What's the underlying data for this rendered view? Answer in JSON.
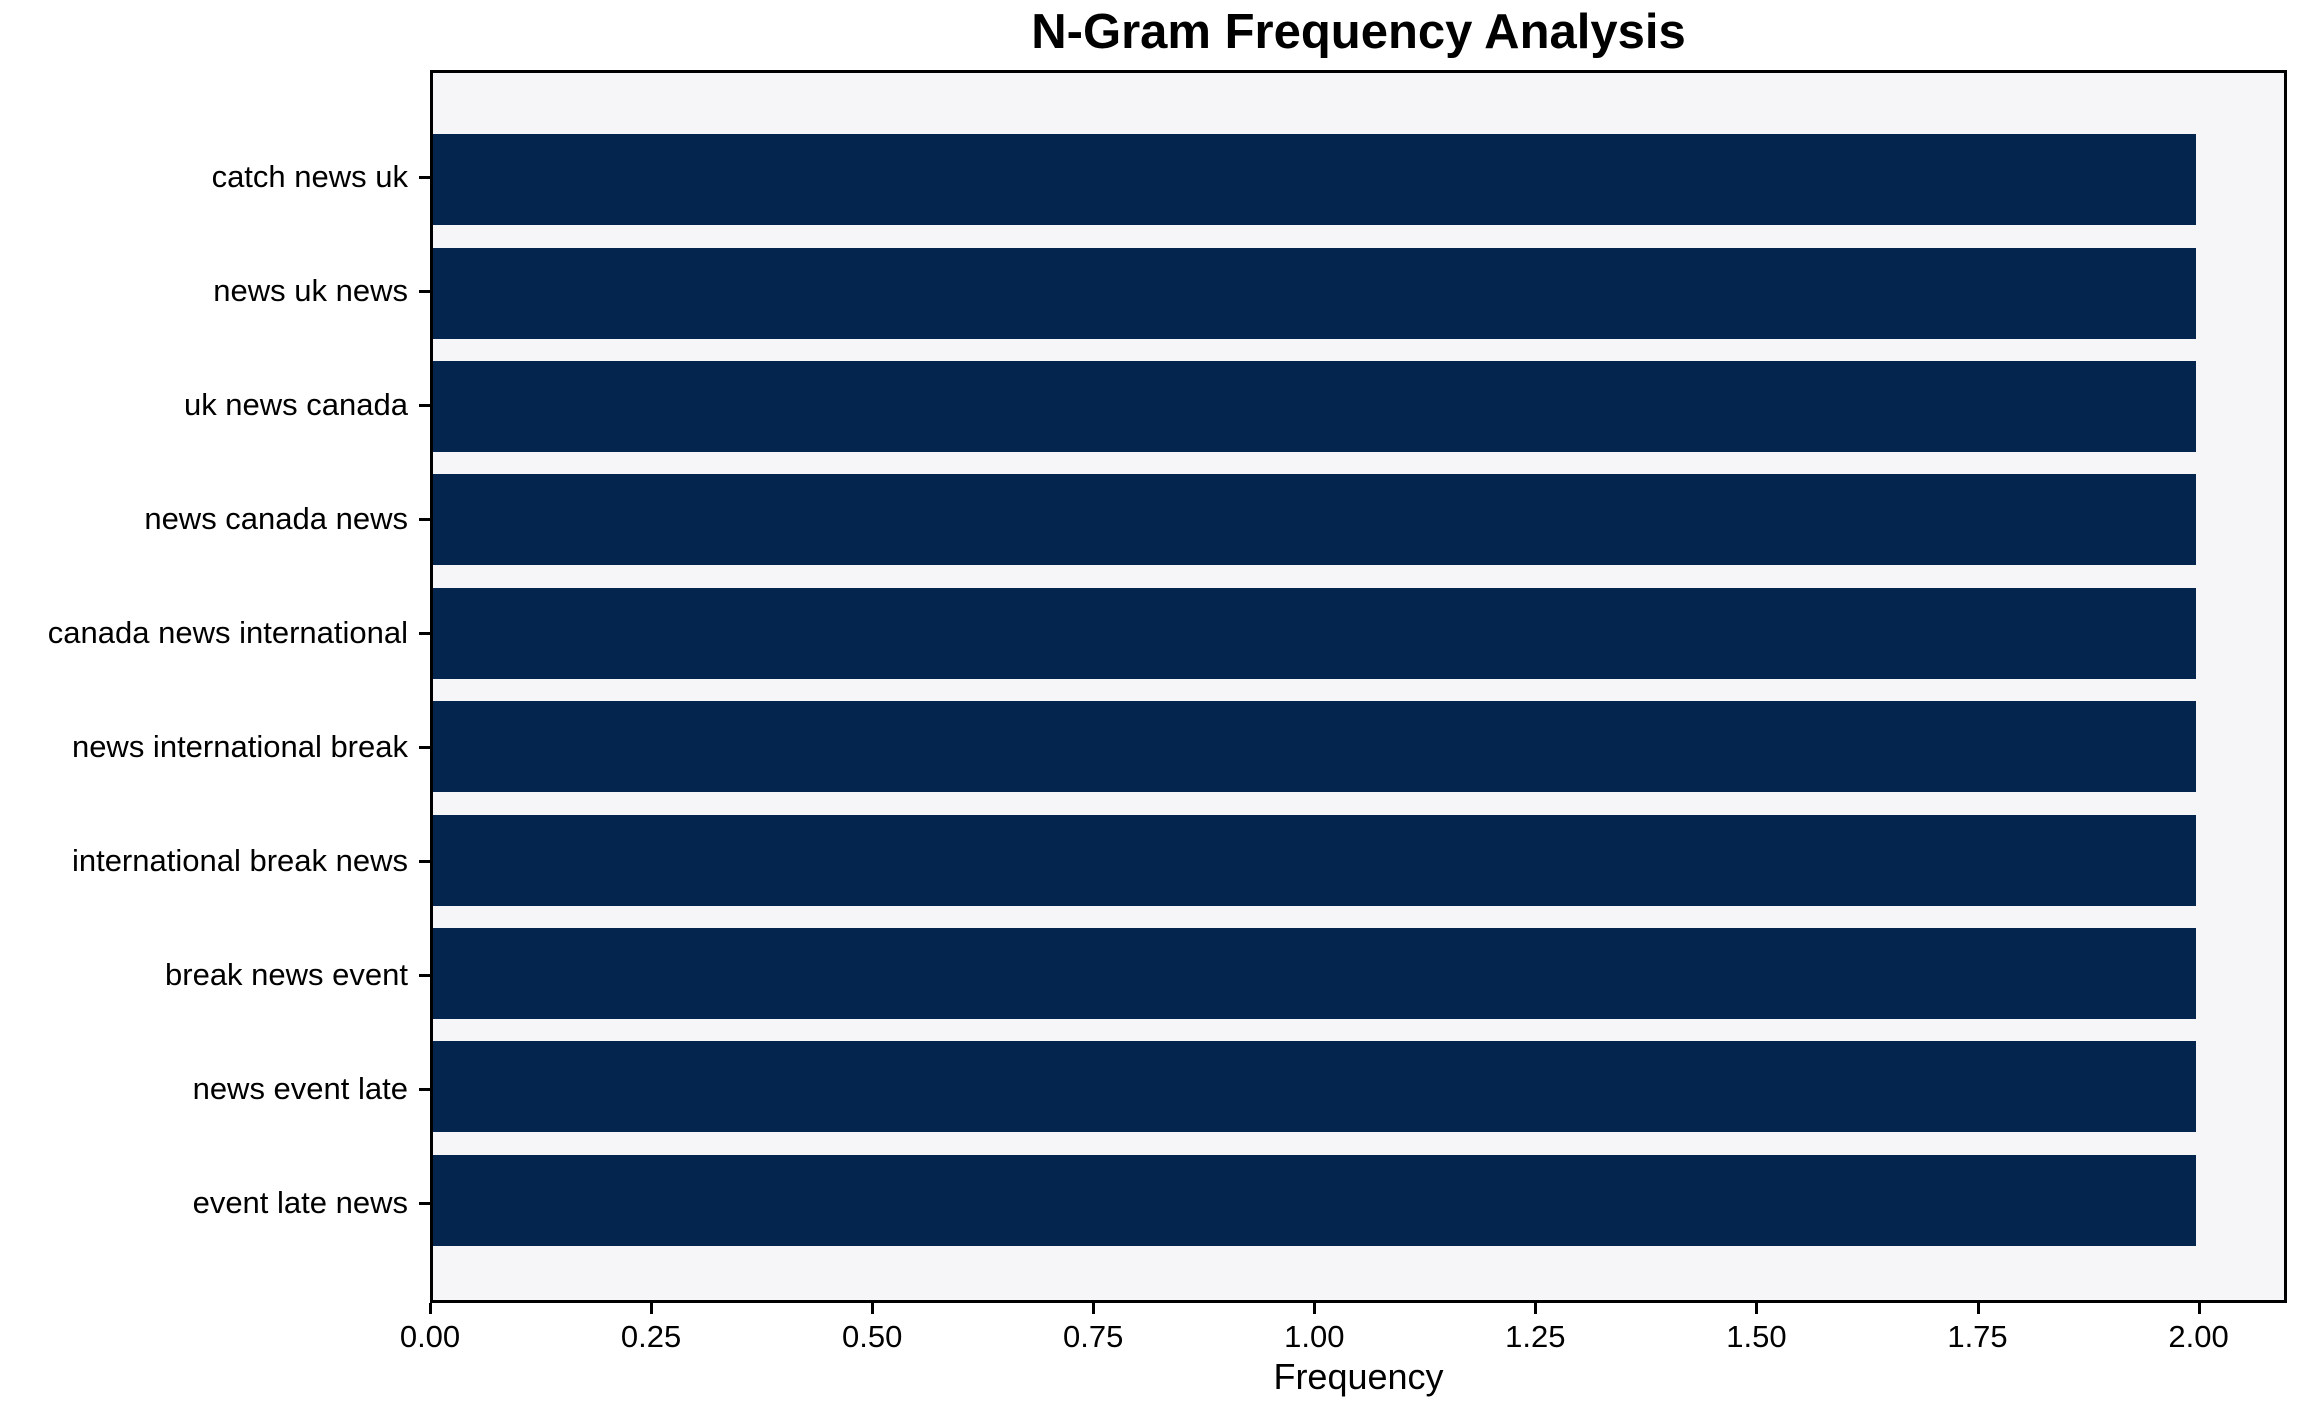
{
  "chart_data": {
    "type": "bar",
    "orientation": "horizontal",
    "title": "N-Gram Frequency Analysis",
    "xlabel": "Frequency",
    "ylabel": "",
    "categories": [
      "catch news uk",
      "news uk news",
      "uk news canada",
      "news canada news",
      "canada news international",
      "news international break",
      "international break news",
      "break news event",
      "news event late",
      "event late news"
    ],
    "values": [
      2,
      2,
      2,
      2,
      2,
      2,
      2,
      2,
      2,
      2
    ],
    "xlim": [
      0,
      2.1
    ],
    "xticks": [
      0,
      0.25,
      0.5,
      0.75,
      1,
      1.25,
      1.5,
      1.75,
      2
    ],
    "xtick_labels": [
      "0.00",
      "0.25",
      "0.50",
      "0.75",
      "1.00",
      "1.25",
      "1.50",
      "1.75",
      "2.00"
    ],
    "grid": false,
    "legend": null,
    "bar_height_fraction": 0.8,
    "colors": {
      "bar": "#04254e",
      "plot_bg": "#f6f6f8",
      "figure_bg": "#ffffff",
      "spine": "#000000",
      "text": "#000000"
    }
  }
}
